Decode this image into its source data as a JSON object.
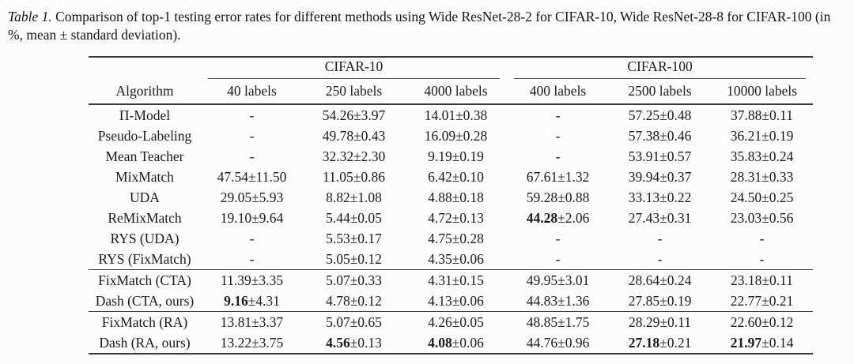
{
  "caption": {
    "label": "Table 1.",
    "text": " Comparison of top-1 testing error rates for different methods using Wide ResNet-28-2 for CIFAR-10, Wide ResNet-28-8 for CIFAR-100 (in %, mean ± standard deviation)."
  },
  "table": {
    "pm_symbol": "±",
    "group_headers": [
      {
        "label": "CIFAR-10",
        "span": 3
      },
      {
        "label": "CIFAR-100",
        "span": 3
      }
    ],
    "columns": [
      "Algorithm",
      "40 labels",
      "250 labels",
      "4000 labels",
      "400 labels",
      "2500 labels",
      "10000 labels"
    ],
    "sections": [
      {
        "rows": [
          {
            "algorithm": "Π-Model",
            "bold_name": false,
            "cells": [
              "-",
              {
                "mean": "54.26",
                "std": "3.97"
              },
              {
                "mean": "14.01",
                "std": "0.38"
              },
              "-",
              {
                "mean": "57.25",
                "std": "0.48"
              },
              {
                "mean": "37.88",
                "std": "0.11"
              }
            ]
          },
          {
            "algorithm": "Pseudo-Labeling",
            "bold_name": false,
            "cells": [
              "-",
              {
                "mean": "49.78",
                "std": "0.43"
              },
              {
                "mean": "16.09",
                "std": "0.28"
              },
              "-",
              {
                "mean": "57.38",
                "std": "0.46"
              },
              {
                "mean": "36.21",
                "std": "0.19"
              }
            ]
          },
          {
            "algorithm": "Mean Teacher",
            "bold_name": false,
            "cells": [
              "-",
              {
                "mean": "32.32",
                "std": "2.30"
              },
              {
                "mean": "9.19",
                "std": "0.19"
              },
              "-",
              {
                "mean": "53.91",
                "std": "0.57"
              },
              {
                "mean": "35.83",
                "std": "0.24"
              }
            ]
          },
          {
            "algorithm": "MixMatch",
            "bold_name": false,
            "cells": [
              {
                "mean": "47.54",
                "std": "11.50"
              },
              {
                "mean": "11.05",
                "std": "0.86"
              },
              {
                "mean": "6.42",
                "std": "0.10"
              },
              {
                "mean": "67.61",
                "std": "1.32"
              },
              {
                "mean": "39.94",
                "std": "0.37"
              },
              {
                "mean": "28.31",
                "std": "0.33"
              }
            ]
          },
          {
            "algorithm": "UDA",
            "bold_name": false,
            "cells": [
              {
                "mean": "29.05",
                "std": "5.93"
              },
              {
                "mean": "8.82",
                "std": "1.08"
              },
              {
                "mean": "4.88",
                "std": "0.18"
              },
              {
                "mean": "59.28",
                "std": "0.88"
              },
              {
                "mean": "33.13",
                "std": "0.22"
              },
              {
                "mean": "24.50",
                "std": "0.25"
              }
            ]
          },
          {
            "algorithm": "ReMixMatch",
            "bold_name": false,
            "cells": [
              {
                "mean": "19.10",
                "std": "9.64"
              },
              {
                "mean": "5.44",
                "std": "0.05"
              },
              {
                "mean": "4.72",
                "std": "0.13"
              },
              {
                "mean": "44.28",
                "std": "2.06",
                "bold": true
              },
              {
                "mean": "27.43",
                "std": "0.31"
              },
              {
                "mean": "23.03",
                "std": "0.56"
              }
            ]
          },
          {
            "algorithm": "RYS (UDA)",
            "bold_name": false,
            "cells": [
              "-",
              {
                "mean": "5.53",
                "std": "0.17"
              },
              {
                "mean": "4.75",
                "std": "0.28"
              },
              "-",
              "-",
              "-"
            ]
          },
          {
            "algorithm": "RYS (FixMatch)",
            "bold_name": false,
            "cells": [
              "-",
              {
                "mean": "5.05",
                "std": "0.12"
              },
              {
                "mean": "4.35",
                "std": "0.06"
              },
              "-",
              "-",
              "-"
            ]
          }
        ]
      },
      {
        "rows": [
          {
            "algorithm": "FixMatch (CTA)",
            "bold_name": false,
            "cells": [
              {
                "mean": "11.39",
                "std": "3.35"
              },
              {
                "mean": "5.07",
                "std": "0.33"
              },
              {
                "mean": "4.31",
                "std": "0.15"
              },
              {
                "mean": "49.95",
                "std": "3.01"
              },
              {
                "mean": "28.64",
                "std": "0.24"
              },
              {
                "mean": "23.18",
                "std": "0.11"
              }
            ]
          },
          {
            "algorithm": "Dash (CTA, ours)",
            "bold_name": true,
            "cells": [
              {
                "mean": "9.16",
                "std": "4.31",
                "bold": true
              },
              {
                "mean": "4.78",
                "std": "0.12"
              },
              {
                "mean": "4.13",
                "std": "0.06"
              },
              {
                "mean": "44.83",
                "std": "1.36"
              },
              {
                "mean": "27.85",
                "std": "0.19"
              },
              {
                "mean": "22.77",
                "std": "0.21"
              }
            ]
          }
        ]
      },
      {
        "rows": [
          {
            "algorithm": "FixMatch (RA)",
            "bold_name": false,
            "cells": [
              {
                "mean": "13.81",
                "std": "3.37"
              },
              {
                "mean": "5.07",
                "std": "0.65"
              },
              {
                "mean": "4.26",
                "std": "0.05"
              },
              {
                "mean": "48.85",
                "std": "1.75"
              },
              {
                "mean": "28.29",
                "std": "0.11"
              },
              {
                "mean": "22.60",
                "std": "0.12"
              }
            ]
          },
          {
            "algorithm": "Dash (RA, ours)",
            "bold_name": true,
            "cells": [
              {
                "mean": "13.22",
                "std": "3.75"
              },
              {
                "mean": "4.56",
                "std": "0.13",
                "bold": true
              },
              {
                "mean": "4.08",
                "std": "0.06",
                "bold": true
              },
              {
                "mean": "44.76",
                "std": "0.96"
              },
              {
                "mean": "27.18",
                "std": "0.21",
                "bold": true
              },
              {
                "mean": "21.97",
                "std": "0.14",
                "bold": true
              }
            ]
          }
        ]
      }
    ]
  }
}
